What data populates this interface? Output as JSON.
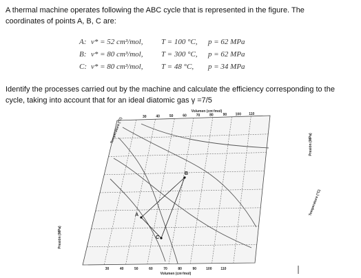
{
  "intro_lines": [
    "A thermal machine operates following the ABC cycle that is represented in the figure. The",
    "coordinates of points A, B, C are:"
  ],
  "points": [
    {
      "label": "A:",
      "v": "v* = 52 cm³/mol,",
      "T": "T = 100 °C,",
      "p": "p = 62 MPa"
    },
    {
      "label": "B:",
      "v": "v* = 80 cm³/mol,",
      "T": "T = 300 °C,",
      "p": "p = 62 MPa"
    },
    {
      "label": "C:",
      "v": "v* = 80 cm³/mol,",
      "T": "T = 48 °C,",
      "p": "p = 34 MPa"
    }
  ],
  "question_lines": [
    "Identify the processes carried out by the machine and calculate the efficiency corresponding to the",
    "cycle, taking into account that for an ideal diatomic gas γ =7/5"
  ],
  "figure": {
    "volume_title": "Volumen (cm³/mol)",
    "pressure_title": "Presión (MPa)",
    "temperature_title": "Temperatura (°C)",
    "volume_ticks": [
      "30",
      "40",
      "50",
      "60",
      "70",
      "80",
      "90",
      "100",
      "110"
    ],
    "point_labels": [
      "A",
      "B",
      "C"
    ]
  }
}
